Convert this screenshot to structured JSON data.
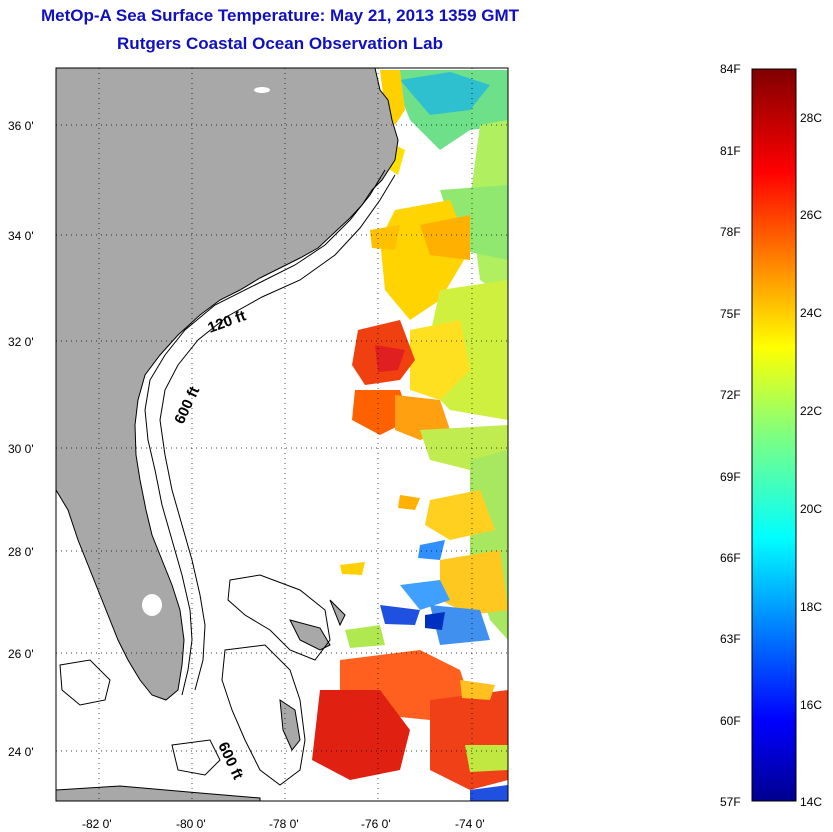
{
  "title": {
    "line1": "MetOp-A Sea Surface Temperature:  May 21, 2013 1359 GMT",
    "line2": "Rutgers Coastal Ocean Observation Lab"
  },
  "map": {
    "lat_ticks": [
      "36 0'",
      "34 0'",
      "32 0'",
      "30 0'",
      "28 0'",
      "26 0'",
      "24 0'"
    ],
    "lon_ticks": [
      "-82 0'",
      "-80 0'",
      "-78 0'",
      "-76 0'",
      "-74 0'"
    ],
    "contour_labels": [
      "120 ft",
      "600 ft",
      "600 ft"
    ],
    "land_color": "#a8a8a8"
  },
  "colorbar": {
    "fahrenheit_labels": [
      "84F",
      "81F",
      "78F",
      "75F",
      "72F",
      "69F",
      "66F",
      "63F",
      "60F",
      "57F"
    ],
    "celsius_labels": [
      "28C",
      "26C",
      "24C",
      "22C",
      "20C",
      "18C",
      "16C",
      "14C"
    ],
    "range_f": [
      57,
      84
    ],
    "range_c": [
      14,
      29
    ]
  }
}
